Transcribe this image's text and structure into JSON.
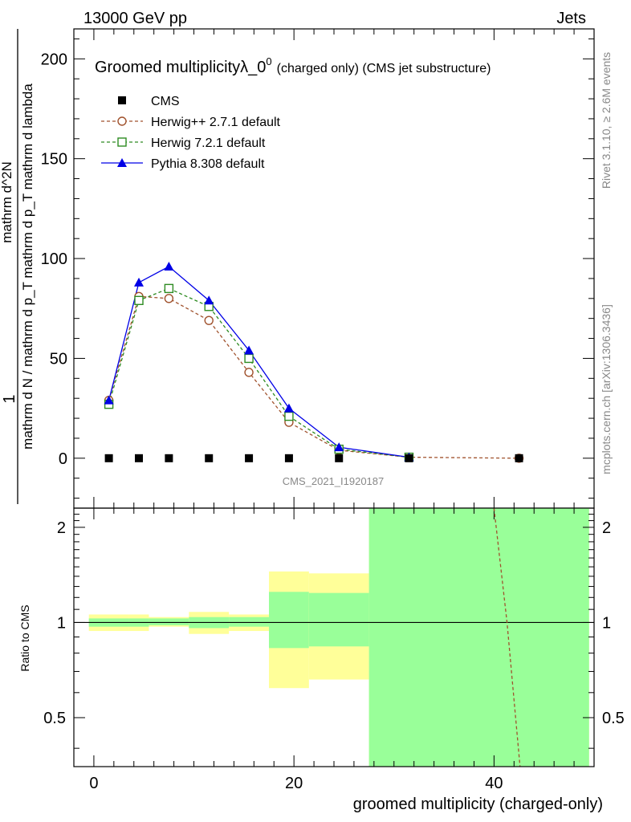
{
  "header": {
    "energy_label": "13000 GeV pp",
    "process_label": "Jets",
    "title_main": "Groomed multiplicityλ_0",
    "title_sup": "0",
    "title_suffix": "(charged only) (CMS jet substructure)",
    "analysis_id": "CMS_2021_I1920187"
  },
  "side_labels": {
    "rivet": "Rivet 3.1.10, ≥ 2.6M events",
    "mcplots": "mcplots.cern.ch [arXiv:1306.3436]"
  },
  "colors": {
    "cms": "#000000",
    "herwigpp": "#a0522d",
    "herwig7": "#2e8b22",
    "pythia": "#0000e6",
    "band_green": "#99ff99",
    "band_yellow": "#ffff99",
    "axis": "#000000",
    "watermark": "#888888"
  },
  "chart_data": {
    "type": "line",
    "x_title": "groomed multiplicity (charged-only)",
    "y_title_top": "1",
    "y_title_numerator": "mathrm d^2N",
    "y_title_denominator": "mathrm d N / mathrm d p_T mathrm d p_T mathrm d lambda",
    "ratio_ylabel": "Ratio to CMS",
    "xlim": [
      -2,
      50
    ],
    "ylim": [
      -25,
      215
    ],
    "ratio_ylim": [
      0.35,
      2.3
    ],
    "x_ticks": [
      0,
      20,
      40
    ],
    "y_ticks": [
      0,
      50,
      100,
      150,
      200
    ],
    "ratio_ticks": [
      0.5,
      1,
      2
    ],
    "legend_position": "top-left",
    "series": [
      {
        "name": "CMS",
        "marker": "square",
        "x": [
          1.5,
          4.5,
          7.5,
          11.5,
          15.5,
          19.5,
          24.5,
          31.5,
          42.5
        ],
        "y": [
          0,
          0,
          0,
          0,
          0,
          0,
          0,
          0,
          0
        ]
      },
      {
        "name": "Herwig++ 2.7.1 default",
        "marker": "circle",
        "x": [
          1.5,
          4.5,
          7.5,
          11.5,
          15.5,
          19.5,
          24.5,
          31.5,
          42.5
        ],
        "y": [
          29,
          81,
          80,
          69,
          43,
          18,
          4,
          0.5,
          0
        ]
      },
      {
        "name": "Herwig 7.2.1 default",
        "marker": "open-square",
        "x": [
          1.5,
          4.5,
          7.5,
          11.5,
          15.5,
          19.5,
          24.5,
          31.5
        ],
        "y": [
          27,
          79,
          85,
          76,
          50,
          21,
          4.5,
          0.5
        ]
      },
      {
        "name": "Pythia 8.308 default",
        "marker": "triangle",
        "x": [
          1.5,
          4.5,
          7.5,
          11.5,
          15.5,
          19.5,
          24.5,
          31.5
        ],
        "y": [
          29,
          88,
          96,
          79,
          54,
          25,
          5.5,
          0.5
        ]
      }
    ],
    "ratio_bands": [
      {
        "x0": -0.5,
        "x1": 3.5,
        "green": [
          0.97,
          1.03
        ],
        "yellow": [
          0.94,
          1.06
        ]
      },
      {
        "x0": 3.5,
        "x1": 5.5,
        "green": [
          0.97,
          1.03
        ],
        "yellow": [
          0.94,
          1.06
        ]
      },
      {
        "x0": 5.5,
        "x1": 9.5,
        "green": [
          0.98,
          1.03
        ],
        "yellow": [
          0.97,
          1.04
        ]
      },
      {
        "x0": 9.5,
        "x1": 13.5,
        "green": [
          0.96,
          1.04
        ],
        "yellow": [
          0.92,
          1.08
        ]
      },
      {
        "x0": 13.5,
        "x1": 17.5,
        "green": [
          0.97,
          1.04
        ],
        "yellow": [
          0.94,
          1.06
        ]
      },
      {
        "x0": 17.5,
        "x1": 21.5,
        "green": [
          0.83,
          1.25
        ],
        "yellow": [
          0.62,
          1.45
        ]
      },
      {
        "x0": 21.5,
        "x1": 27.5,
        "green": [
          0.84,
          1.24
        ],
        "yellow": [
          0.66,
          1.43
        ]
      },
      {
        "x0": 27.5,
        "x1": 49.5,
        "green": [
          0.0,
          3.0
        ],
        "yellow": [
          0.0,
          3.0
        ]
      }
    ],
    "ratio_curves": [
      {
        "name": "Herwig++ 2.7.1 default",
        "x": [
          40.0,
          41.3,
          42.6
        ],
        "y": [
          2.3,
          1.0,
          0.35
        ]
      }
    ]
  }
}
